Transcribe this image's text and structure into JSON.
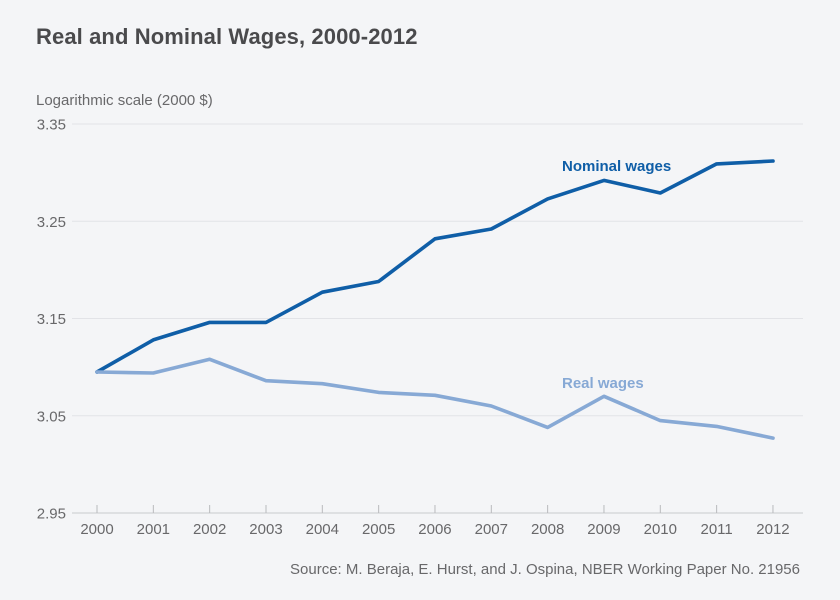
{
  "page": {
    "title": "Real and Nominal Wages, 2000-2012",
    "source": "Source: M. Beraja, E. Hurst, and J. Ospina, NBER Working Paper No. 21956"
  },
  "chart_data": {
    "type": "line",
    "title": "Real and Nominal Wages, 2000-2012",
    "ylabel": "Logarithmic scale (2000 $)",
    "xlabel": "",
    "x": [
      2000,
      2001,
      2002,
      2003,
      2004,
      2005,
      2006,
      2007,
      2008,
      2009,
      2010,
      2011,
      2012
    ],
    "series": [
      {
        "name": "Nominal wages",
        "color": "#0f5ea7",
        "values": [
          3.095,
          3.128,
          3.146,
          3.146,
          3.177,
          3.188,
          3.232,
          3.242,
          3.273,
          3.292,
          3.279,
          3.309,
          3.312
        ]
      },
      {
        "name": "Real wages",
        "color": "#87a9d5",
        "values": [
          3.095,
          3.094,
          3.108,
          3.086,
          3.083,
          3.074,
          3.071,
          3.06,
          3.038,
          3.07,
          3.045,
          3.039,
          3.027
        ]
      }
    ],
    "ylim": [
      2.95,
      3.35
    ],
    "yticks": [
      3.35,
      3.25,
      3.15,
      3.05,
      2.95
    ],
    "ytick_labels": [
      "3.35",
      "3.25",
      "3.15",
      "3.05",
      "2.95"
    ],
    "xtick_labels": [
      "2000",
      "2001",
      "2002",
      "2003",
      "2004",
      "2005",
      "2006",
      "2007",
      "2008",
      "2009",
      "2010",
      "2011",
      "2012"
    ],
    "grid": true,
    "legend_position": "inline-annotations"
  },
  "colors": {
    "background": "#f4f5f7",
    "title_text": "#4a4a4c",
    "axis_text": "#68686a",
    "gridline": "#e2e3e7",
    "axis_line": "#c9cacd",
    "tick_mark": "#b9babd",
    "nominal_line": "#0f5ea7",
    "real_line": "#87a9d5"
  }
}
